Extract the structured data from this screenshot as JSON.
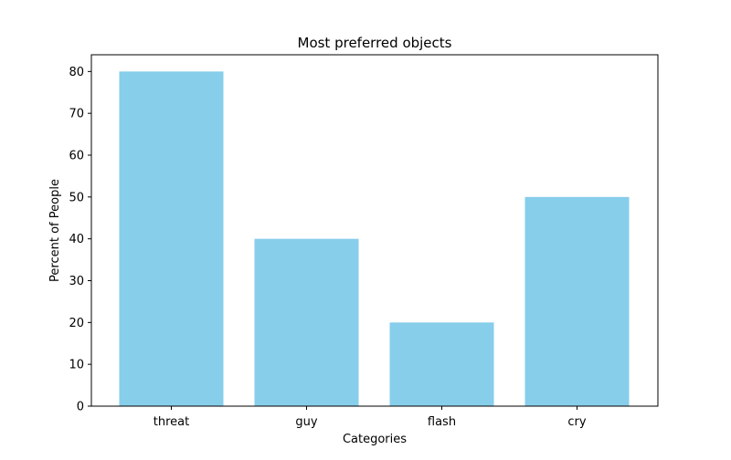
{
  "chart_data": {
    "type": "bar",
    "title": "Most preferred objects",
    "xlabel": "Categories",
    "ylabel": "Percent of People",
    "categories": [
      "threat",
      "guy",
      "flash",
      "cry"
    ],
    "values": [
      80,
      40,
      20,
      50
    ],
    "ylim": [
      0,
      84
    ],
    "yticks": [
      "0",
      "10",
      "20",
      "30",
      "40",
      "50",
      "60",
      "70",
      "80"
    ],
    "grid": false,
    "legend": "none",
    "bar_color": "#87ceeb"
  }
}
